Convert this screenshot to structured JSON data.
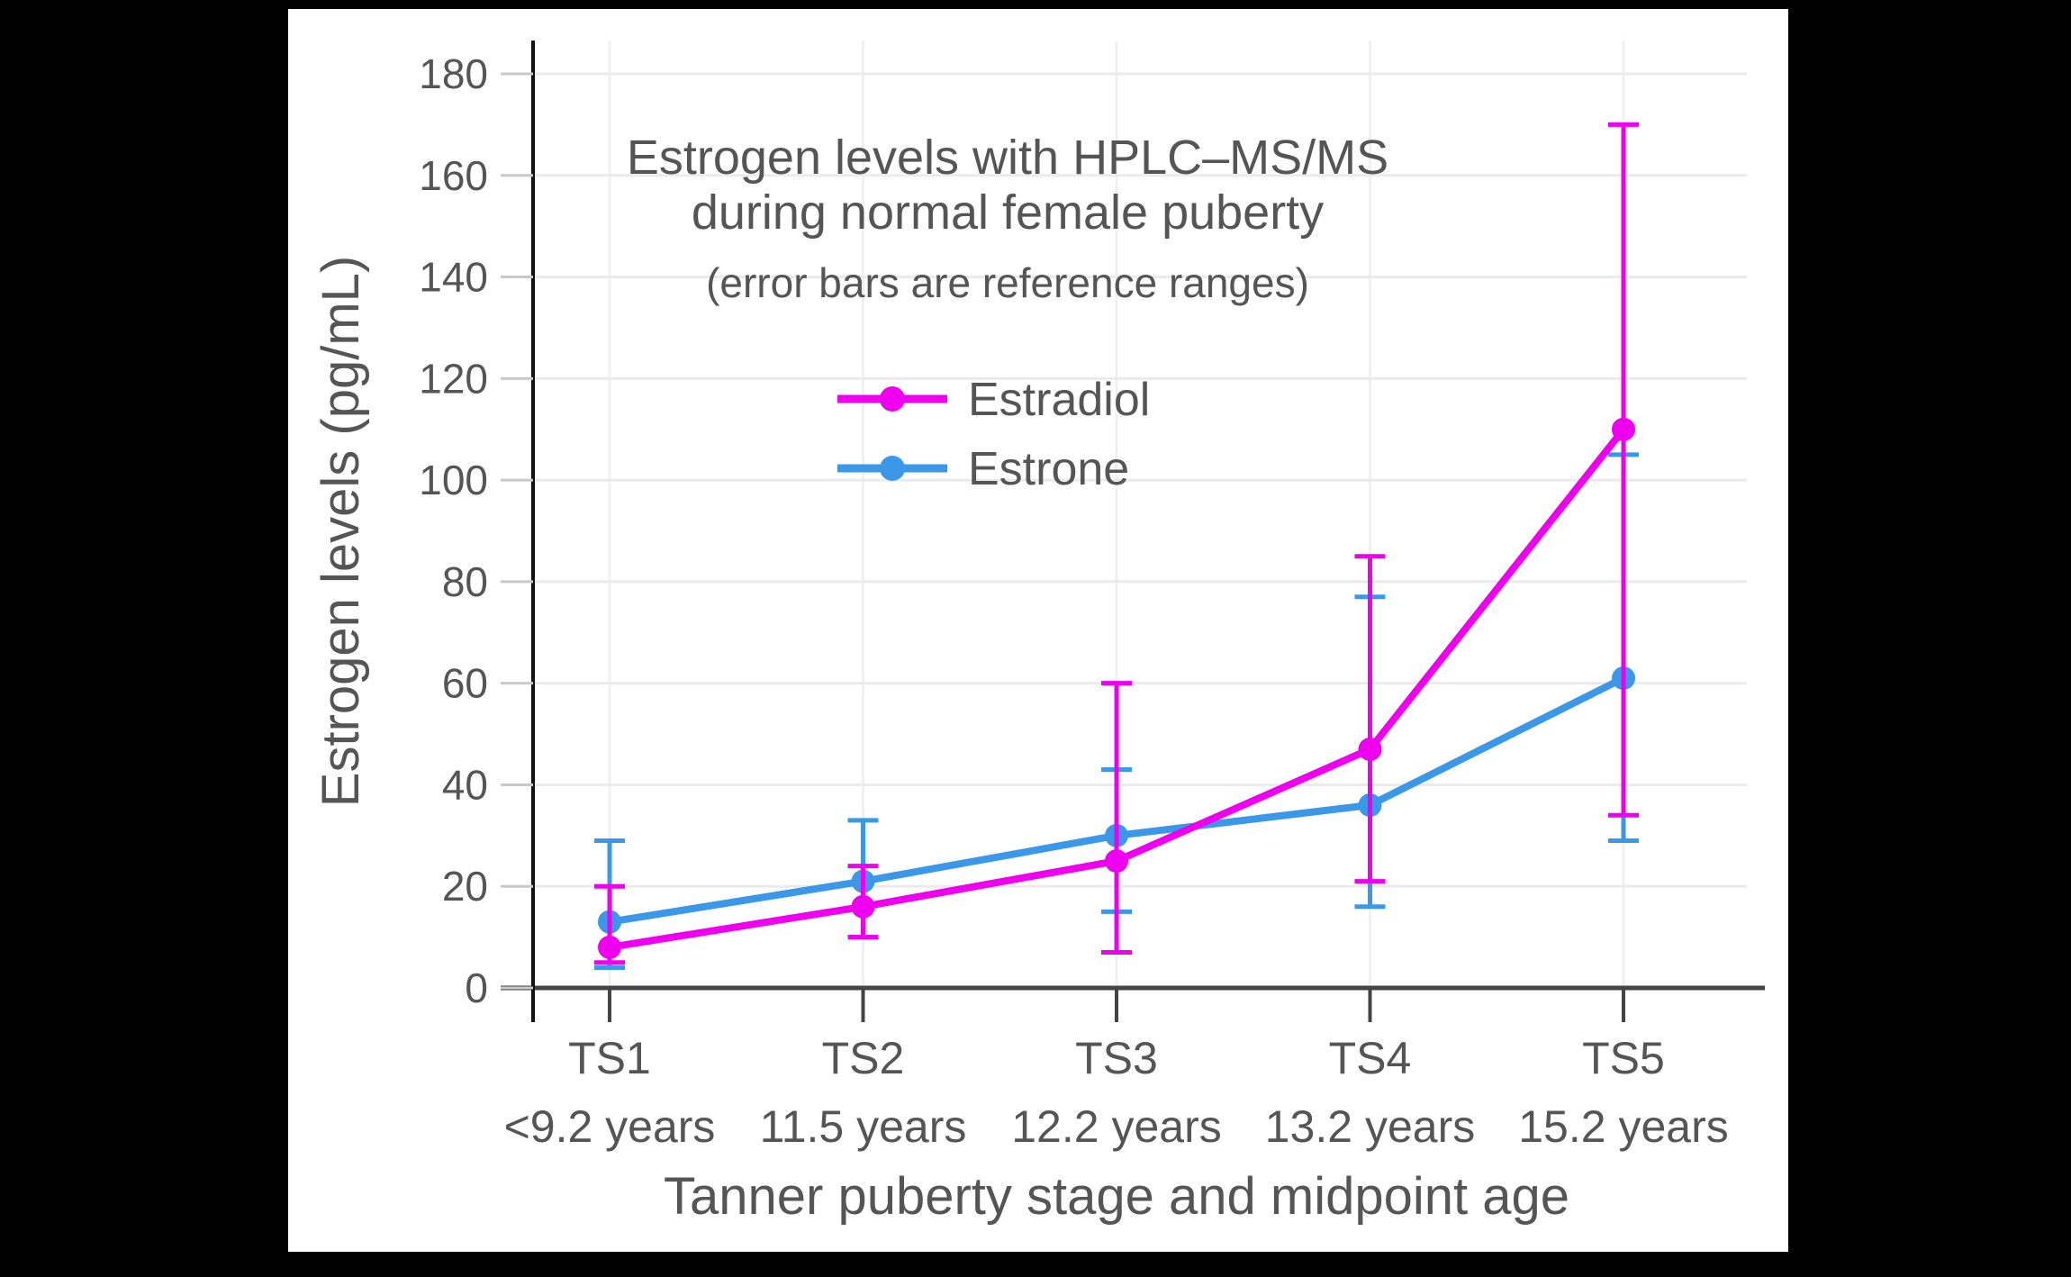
{
  "chart_data": {
    "type": "line",
    "title_line1": "Estrogen levels with HPLC–MS/MS",
    "title_line2": "during normal female puberty",
    "subtitle": "(error bars are reference ranges)",
    "xlabel": "Tanner puberty stage and midpoint age",
    "ylabel": "Estrogen levels (pg/mL)",
    "categories": [
      "TS1",
      "TS2",
      "TS3",
      "TS4",
      "TS5"
    ],
    "category_sublabels": [
      "<9.2 years",
      "11.5 years",
      "12.2 years",
      "13.2 years",
      "15.2 years"
    ],
    "y_ticks": [
      0,
      20,
      40,
      60,
      80,
      100,
      120,
      140,
      160,
      180
    ],
    "ylim": [
      0,
      186
    ],
    "grid": true,
    "legend_position": "upper-center",
    "error_bar_meaning": "reference ranges",
    "series": [
      {
        "name": "Estradiol",
        "color": "#EE00EE",
        "values": [
          8,
          16,
          25,
          47,
          110
        ],
        "error_low": [
          5,
          10,
          7,
          21,
          34
        ],
        "error_high": [
          20,
          24,
          60,
          85,
          170
        ]
      },
      {
        "name": "Estrone",
        "color": "#3B98E8",
        "values": [
          13,
          21,
          30,
          36,
          61
        ],
        "error_low": [
          4,
          10,
          15,
          16,
          29
        ],
        "error_high": [
          29,
          33,
          43,
          77,
          105
        ]
      }
    ]
  },
  "colors": {
    "panel_background": "#FFFFFF",
    "page_background": "#000000",
    "text": "#555555",
    "x_axis": "#444444",
    "y_axis": "#111111",
    "gridline": "#EBEBEB",
    "tick": "#C9C9C9"
  }
}
